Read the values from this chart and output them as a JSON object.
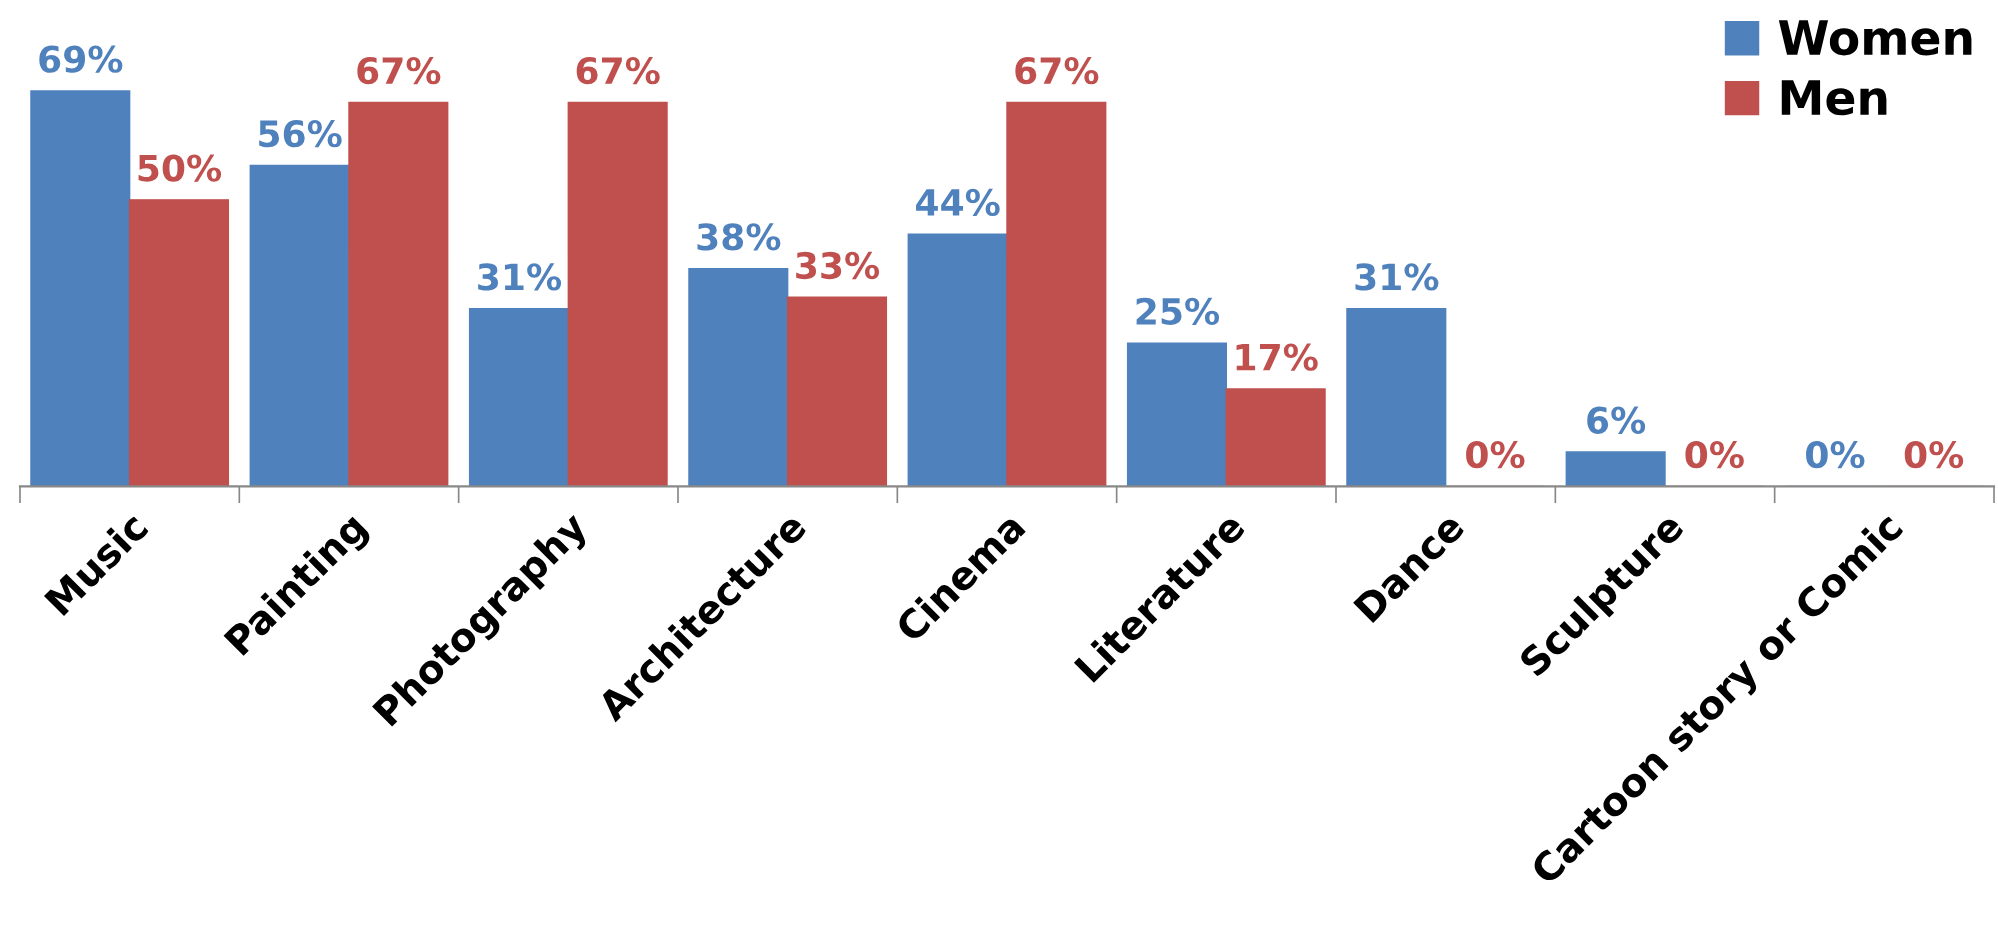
{
  "chart_data": {
    "type": "bar",
    "categories": [
      "Music",
      "Painting",
      "Photography",
      "Architecture",
      "Cinema",
      "Literature",
      "Dance",
      "Sculpture",
      "Cartoon story or Comic"
    ],
    "series": [
      {
        "name": "Women",
        "color": "#4f81bd",
        "values": [
          69,
          56,
          31,
          38,
          44,
          25,
          31,
          6,
          0
        ],
        "value_labels": [
          "69%",
          "56%",
          "31%",
          "38%",
          "44%",
          "25%",
          "31%",
          "6%",
          "0%"
        ]
      },
      {
        "name": "Men",
        "color": "#c0504d",
        "values": [
          50,
          67,
          67,
          33,
          67,
          17,
          0,
          0,
          0
        ],
        "value_labels": [
          "50%",
          "67%",
          "67%",
          "33%",
          "67%",
          "17%",
          "0%",
          "0%",
          "0%"
        ]
      }
    ],
    "legend": "top right",
    "grid": false
  }
}
